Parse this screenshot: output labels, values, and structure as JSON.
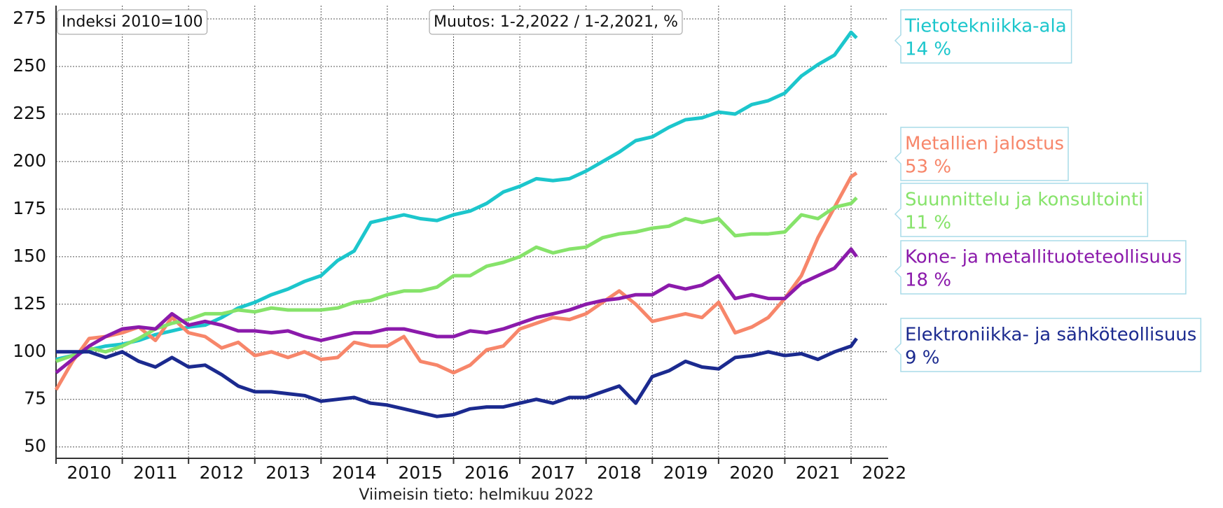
{
  "chart_data": {
    "type": "line",
    "annotations": [
      "Indeksi 2010=100",
      "Muutos: 1-2,2022 / 1-2,2021, %"
    ],
    "x_label": "Viimeisin tieto: helmikuu 2022",
    "x": [
      2010,
      2010.25,
      2010.5,
      2010.75,
      2011,
      2011.25,
      2011.5,
      2011.75,
      2012,
      2012.25,
      2012.5,
      2012.75,
      2013,
      2013.25,
      2013.5,
      2013.75,
      2014,
      2014.25,
      2014.5,
      2014.75,
      2015,
      2015.25,
      2015.5,
      2015.75,
      2016,
      2016.25,
      2016.5,
      2016.75,
      2017,
      2017.25,
      2017.5,
      2017.75,
      2018,
      2018.25,
      2018.5,
      2018.75,
      2019,
      2019.25,
      2019.5,
      2019.75,
      2020,
      2020.25,
      2020.5,
      2020.75,
      2021,
      2021.25,
      2021.5,
      2021.75,
      2022,
      2022.083
    ],
    "xlim": [
      2010,
      2022.56
    ],
    "xticks": [
      {
        "value": 2010,
        "label": "2010"
      },
      {
        "value": 2011,
        "label": "2011"
      },
      {
        "value": 2012,
        "label": "2012"
      },
      {
        "value": 2013,
        "label": "2013"
      },
      {
        "value": 2014,
        "label": "2014"
      },
      {
        "value": 2015,
        "label": "2015"
      },
      {
        "value": 2016,
        "label": "2016"
      },
      {
        "value": 2017,
        "label": "2017"
      },
      {
        "value": 2018,
        "label": "2018"
      },
      {
        "value": 2019,
        "label": "2019"
      },
      {
        "value": 2020,
        "label": "2020"
      },
      {
        "value": 2021,
        "label": "2021"
      },
      {
        "value": 2022,
        "label": "2022"
      }
    ],
    "ylim": [
      44,
      282
    ],
    "yticks": [
      50,
      75,
      100,
      125,
      150,
      175,
      200,
      225,
      250,
      275
    ],
    "grid": true,
    "series": [
      {
        "name": "Tietotekniikka-ala",
        "change": "14 %",
        "color": "#1cc6cc",
        "values": [
          96,
          98,
          101,
          103,
          104,
          106,
          109,
          111,
          113,
          114,
          118,
          123,
          126,
          130,
          133,
          137,
          140,
          148,
          153,
          168,
          170,
          172,
          170,
          169,
          172,
          174,
          178,
          184,
          187,
          191,
          190,
          191,
          195,
          200,
          205,
          211,
          213,
          218,
          222,
          223,
          226,
          225,
          230,
          232,
          236,
          245,
          251,
          256,
          268,
          265
        ]
      },
      {
        "name": "Metallien jalostus",
        "change": "53 %",
        "color": "#f7866a",
        "values": [
          80,
          95,
          107,
          108,
          110,
          113,
          106,
          118,
          110,
          108,
          102,
          105,
          98,
          100,
          97,
          100,
          96,
          97,
          105,
          103,
          103,
          108,
          95,
          93,
          89,
          93,
          101,
          103,
          112,
          115,
          118,
          117,
          120,
          126,
          132,
          125,
          116,
          118,
          120,
          118,
          126,
          110,
          113,
          118,
          128,
          140,
          160,
          176,
          192,
          194
        ]
      },
      {
        "name": "Suunnittelu ja konsultointi",
        "change": "11 %",
        "color": "#86e36a",
        "values": [
          95,
          98,
          102,
          100,
          103,
          107,
          112,
          115,
          117,
          120,
          120,
          122,
          121,
          123,
          122,
          122,
          122,
          123,
          126,
          127,
          130,
          132,
          132,
          134,
          140,
          140,
          145,
          147,
          150,
          155,
          152,
          154,
          155,
          160,
          162,
          163,
          165,
          166,
          170,
          168,
          170,
          161,
          162,
          162,
          163,
          172,
          170,
          176,
          178,
          181
        ]
      },
      {
        "name": "Kone- ja metallituoteteollisuus",
        "change": "18 %",
        "color": "#8b1aab",
        "values": [
          89,
          96,
          103,
          108,
          112,
          113,
          112,
          120,
          114,
          116,
          114,
          111,
          111,
          110,
          111,
          108,
          106,
          108,
          110,
          110,
          112,
          112,
          110,
          108,
          108,
          111,
          110,
          112,
          115,
          118,
          120,
          122,
          125,
          127,
          128,
          130,
          130,
          135,
          133,
          135,
          140,
          128,
          130,
          128,
          128,
          136,
          140,
          144,
          154,
          150
        ]
      },
      {
        "name": "Elektroniikka- ja sähköteollisuus",
        "change": "9 %",
        "color": "#1b2a8f",
        "values": [
          100,
          100,
          100,
          97,
          100,
          95,
          92,
          97,
          92,
          93,
          88,
          82,
          79,
          79,
          78,
          77,
          74,
          75,
          76,
          73,
          72,
          70,
          68,
          66,
          67,
          70,
          71,
          71,
          73,
          75,
          73,
          76,
          76,
          79,
          82,
          73,
          87,
          90,
          95,
          92,
          91,
          97,
          98,
          100,
          98,
          99,
          96,
          100,
          103,
          107
        ]
      }
    ]
  }
}
